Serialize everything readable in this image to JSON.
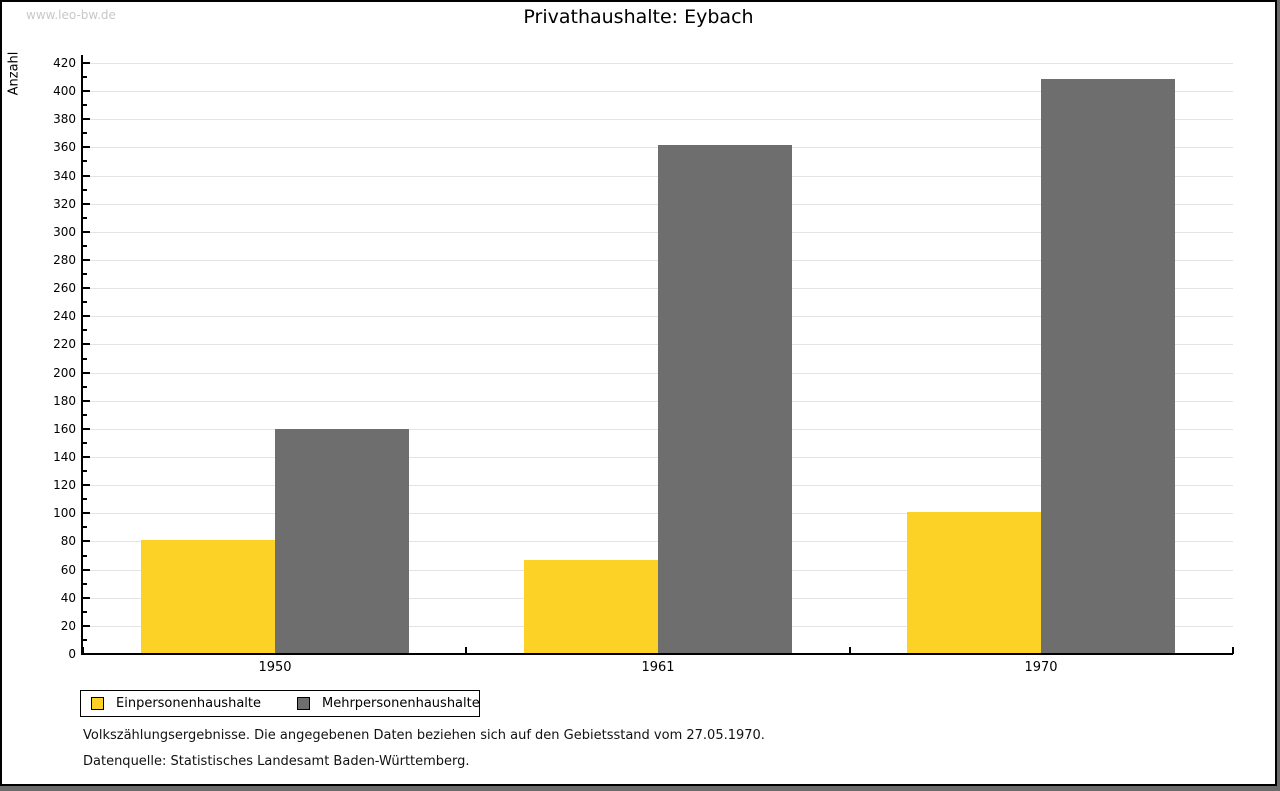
{
  "watermark": "www.leo-bw.de",
  "title": "Privathaushalte: Eybach",
  "footer": {
    "line1": "Volkszählungsergebnisse. Die angegebenen Daten beziehen sich auf den Gebietsstand vom 27.05.1970.",
    "line2": "Datenquelle: Statistisches Landesamt Baden-Württemberg."
  },
  "colors": {
    "series1": "#fcd226",
    "series2": "#6e6e6e",
    "grid": "#e4e4e4",
    "axis": "#000000",
    "watermark": "#c8c8c8",
    "frame_shadow": "#6b6b6b"
  },
  "chart_data": {
    "type": "bar",
    "title": "Privathaushalte: Eybach",
    "categories": [
      "1950",
      "1961",
      "1970"
    ],
    "series": [
      {
        "name": "Einpersonenhaushalte",
        "color": "#fcd226",
        "values": [
          80,
          66,
          100
        ]
      },
      {
        "name": "Mehrpersonenhaushalte",
        "color": "#6e6e6e",
        "values": [
          159,
          361,
          408
        ]
      }
    ],
    "xlabel": "",
    "ylabel": "Anzahl",
    "ylim": [
      0,
      420
    ],
    "ytick_step": 20,
    "yminor_step": 10,
    "grid": true,
    "legend_position": "bottom-left"
  }
}
